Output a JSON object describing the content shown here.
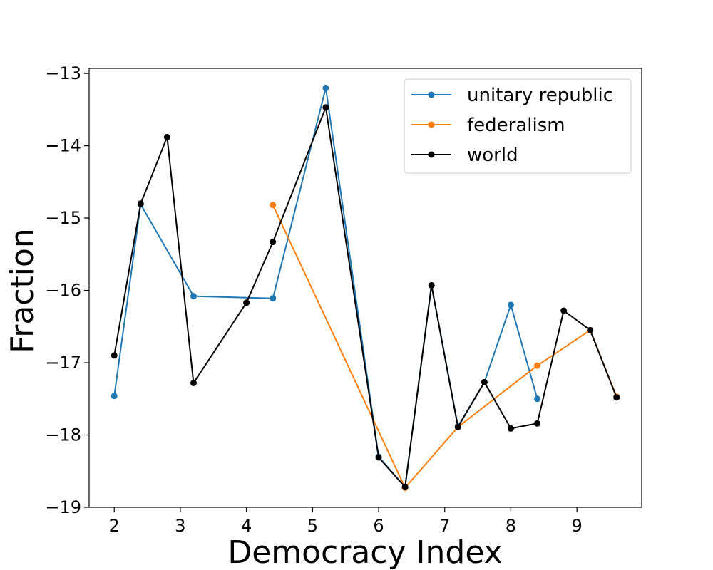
{
  "chart_data": {
    "type": "line",
    "title": "",
    "xlabel": "Democracy Index",
    "ylabel": "Fraction",
    "xlim": [
      1.62,
      9.98
    ],
    "ylim": [
      -19.0,
      -12.93
    ],
    "xticks": [
      2,
      3,
      4,
      5,
      6,
      7,
      8,
      9
    ],
    "yticks": [
      -19,
      -18,
      -17,
      -16,
      -15,
      -14,
      -13
    ],
    "ytick_labels": [
      "−19",
      "−18",
      "−17",
      "−16",
      "−15",
      "−14",
      "−13"
    ],
    "grid": false,
    "legend": "top-right",
    "series": [
      {
        "name": "unitary republic",
        "color": "#1f77b4",
        "marker": "circle",
        "x": [
          2.0,
          2.4,
          3.2,
          4.4,
          5.2,
          6.0,
          6.4,
          6.8,
          7.2,
          7.6,
          8.0,
          8.4
        ],
        "y": [
          -17.46,
          -14.81,
          -16.08,
          -16.11,
          -13.2,
          -18.3,
          -18.72,
          -15.93,
          -17.88,
          -17.27,
          -16.2,
          -17.5
        ]
      },
      {
        "name": "federalism",
        "color": "#ff7f0e",
        "marker": "circle",
        "x": [
          4.4,
          6.4,
          7.2,
          8.4,
          9.2,
          9.6
        ],
        "y": [
          -14.82,
          -18.73,
          -17.89,
          -17.04,
          -16.55,
          -17.47
        ]
      },
      {
        "name": "world",
        "color": "#000000",
        "marker": "circle",
        "x": [
          2.0,
          2.4,
          2.8,
          3.2,
          4.0,
          4.4,
          5.2,
          6.0,
          6.4,
          6.8,
          7.2,
          7.6,
          8.0,
          8.4,
          8.8,
          9.2,
          9.6
        ],
        "y": [
          -16.9,
          -14.8,
          -13.88,
          -17.28,
          -16.17,
          -15.33,
          -13.47,
          -18.31,
          -18.72,
          -15.93,
          -17.89,
          -17.27,
          -17.91,
          -17.84,
          -16.28,
          -16.55,
          -17.48
        ]
      }
    ]
  }
}
